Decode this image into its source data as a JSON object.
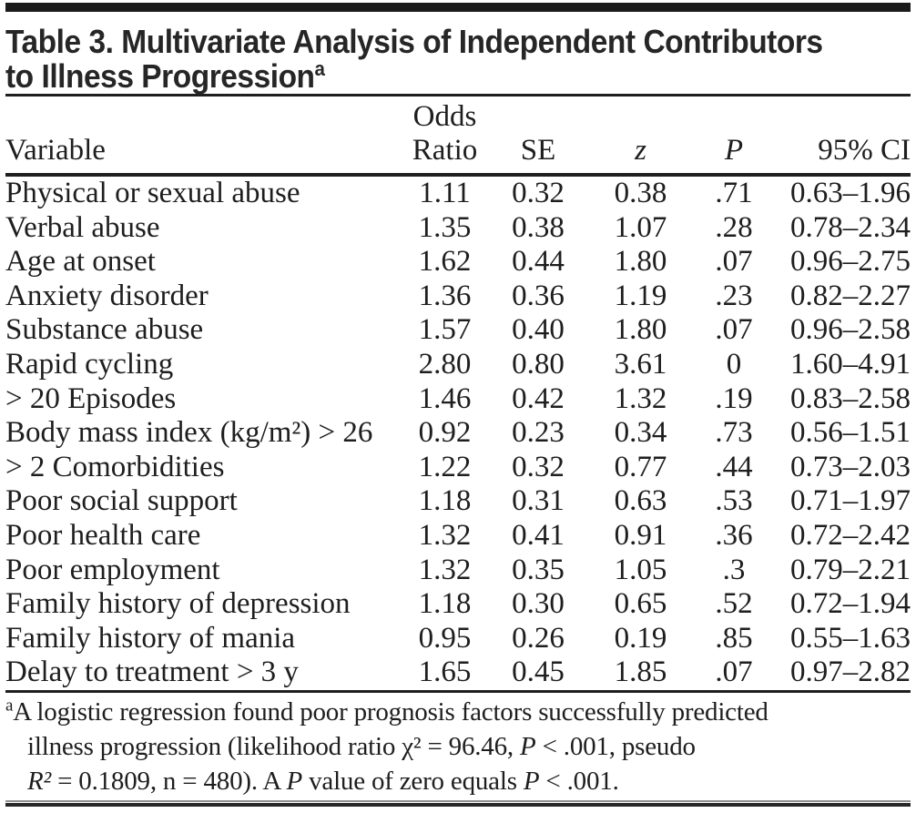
{
  "title": {
    "line1": "Table 3. Multivariate Analysis of Independent Contributors",
    "line2": "to Illness Progression",
    "superscript": "a"
  },
  "table": {
    "headers": {
      "variable": "Variable",
      "odds_ratio_line1": "Odds",
      "odds_ratio_line2": "Ratio",
      "se": "SE",
      "z": "z",
      "p": "P",
      "ci": "95% CI"
    },
    "rows": [
      {
        "variable": "Physical or sexual abuse",
        "odds_ratio": "1.11",
        "se": "0.32",
        "z": "0.38",
        "p": ".71",
        "ci": "0.63–1.96"
      },
      {
        "variable": "Verbal abuse",
        "odds_ratio": "1.35",
        "se": "0.38",
        "z": "1.07",
        "p": ".28",
        "ci": "0.78–2.34"
      },
      {
        "variable": "Age at onset",
        "odds_ratio": "1.62",
        "se": "0.44",
        "z": "1.80",
        "p": ".07",
        "ci": "0.96–2.75"
      },
      {
        "variable": "Anxiety disorder",
        "odds_ratio": "1.36",
        "se": "0.36",
        "z": "1.19",
        "p": ".23",
        "ci": "0.82–2.27"
      },
      {
        "variable": "Substance abuse",
        "odds_ratio": "1.57",
        "se": "0.40",
        "z": "1.80",
        "p": ".07",
        "ci": "0.96–2.58"
      },
      {
        "variable": "Rapid cycling",
        "odds_ratio": "2.80",
        "se": "0.80",
        "z": "3.61",
        "p": "0",
        "ci": "1.60–4.91"
      },
      {
        "variable": "> 20 Episodes",
        "odds_ratio": "1.46",
        "se": "0.42",
        "z": "1.32",
        "p": ".19",
        "ci": "0.83–2.58"
      },
      {
        "variable": "Body mass index (kg/m²) > 26",
        "odds_ratio": "0.92",
        "se": "0.23",
        "z": "0.34",
        "p": ".73",
        "ci": "0.56–1.51"
      },
      {
        "variable": "> 2 Comorbidities",
        "odds_ratio": "1.22",
        "se": "0.32",
        "z": "0.77",
        "p": ".44",
        "ci": "0.73–2.03"
      },
      {
        "variable": "Poor social support",
        "odds_ratio": "1.18",
        "se": "0.31",
        "z": "0.63",
        "p": ".53",
        "ci": "0.71–1.97"
      },
      {
        "variable": "Poor health care",
        "odds_ratio": "1.32",
        "se": "0.41",
        "z": "0.91",
        "p": ".36",
        "ci": "0.72–2.42"
      },
      {
        "variable": "Poor employment",
        "odds_ratio": "1.32",
        "se": "0.35",
        "z": "1.05",
        "p": ".3",
        "ci": "0.79–2.21"
      },
      {
        "variable": "Family history of depression",
        "odds_ratio": "1.18",
        "se": "0.30",
        "z": "0.65",
        "p": ".52",
        "ci": "0.72–1.94"
      },
      {
        "variable": "Family history of mania",
        "odds_ratio": "0.95",
        "se": "0.26",
        "z": "0.19",
        "p": ".85",
        "ci": "0.55–1.63"
      },
      {
        "variable": "Delay to treatment > 3 y",
        "odds_ratio": "1.65",
        "se": "0.45",
        "z": "1.85",
        "p": ".07",
        "ci": "0.97–2.82"
      }
    ]
  },
  "footnote": {
    "marker": "a",
    "lines": [
      [
        {
          "text": "A logistic regression found poor prognosis factors successfully predicted"
        }
      ],
      [
        {
          "text": "illness progression (likelihood ratio χ² = 96.46, "
        },
        {
          "text": "P",
          "italic": true
        },
        {
          "text": " < .001, pseudo"
        }
      ],
      [
        {
          "text": "R²",
          "italic": true
        },
        {
          "text": " = 0.1809, n = 480). A "
        },
        {
          "text": "P",
          "italic": true
        },
        {
          "text": " value of zero equals "
        },
        {
          "text": "P",
          "italic": true
        },
        {
          "text": " < .001."
        }
      ]
    ]
  },
  "colors": {
    "background": "#ffffff",
    "text": "#1e1e1e",
    "rule": "#1f1f1f"
  }
}
